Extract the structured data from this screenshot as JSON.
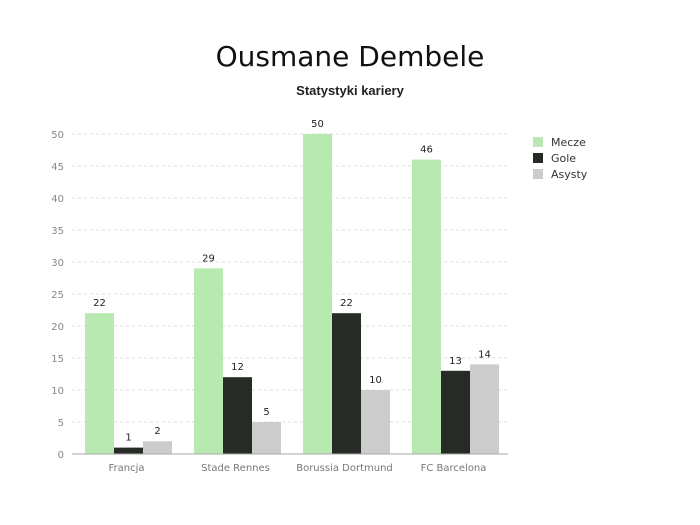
{
  "chart_data": {
    "type": "bar",
    "title": "Ousmane Dembele",
    "subtitle": "Statystyki kariery",
    "categories": [
      "Francja",
      "Stade Rennes",
      "Borussia Dortmund",
      "FC Barcelona"
    ],
    "series": [
      {
        "name": "Mecze",
        "color": "#b8e9b0",
        "values": [
          22,
          29,
          50,
          46
        ]
      },
      {
        "name": "Gole",
        "color": "#262b26",
        "values": [
          1,
          12,
          22,
          13
        ]
      },
      {
        "name": "Asysty",
        "color": "#cccccc",
        "values": [
          2,
          5,
          10,
          14
        ]
      }
    ],
    "ylim": [
      0,
      50
    ],
    "yticks": [
      0,
      5,
      10,
      15,
      20,
      25,
      30,
      35,
      40,
      45,
      50
    ],
    "grid": true,
    "legend_position": "right"
  }
}
